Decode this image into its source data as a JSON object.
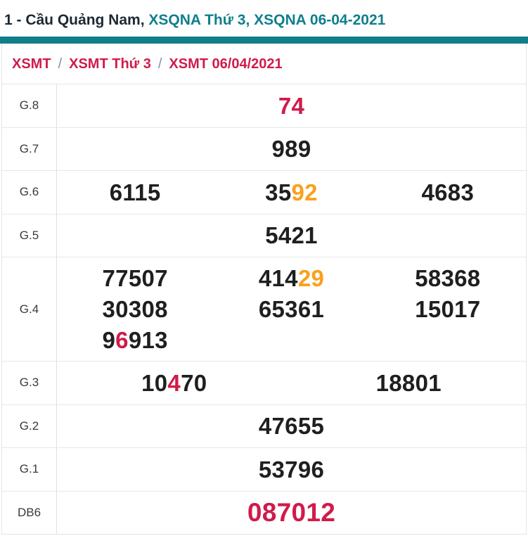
{
  "colors": {
    "teal": "#0e7f8b",
    "crimson": "#d01b4b",
    "orange": "#f9a11c",
    "dark": "#1f1f1f",
    "title_dark": "#1c2833",
    "slash": "#7e93ac",
    "label_gray": "#3a3a3a"
  },
  "title": {
    "segments": [
      {
        "t": "1 - Cầu Quảng Nam, ",
        "c": "title_dark"
      },
      {
        "t": "XSQNA Thứ 3, XSQNA 06-04-2021",
        "c": "teal"
      }
    ]
  },
  "breadcrumb": {
    "separator": "/",
    "items": [
      {
        "label": "XSMT"
      },
      {
        "label": "XSMT Thứ 3"
      },
      {
        "label": "XSMT 06/04/2021"
      }
    ]
  },
  "table": {
    "rows": [
      {
        "label": "G.8",
        "columns": 1,
        "values": [
          [
            {
              "t": "74",
              "c": "crimson"
            }
          ]
        ]
      },
      {
        "label": "G.7",
        "columns": 1,
        "values": [
          [
            {
              "t": "989",
              "c": "dark"
            }
          ]
        ]
      },
      {
        "label": "G.6",
        "columns": 3,
        "values": [
          [
            {
              "t": "6115",
              "c": "dark"
            }
          ],
          [
            {
              "t": "35",
              "c": "dark"
            },
            {
              "t": "92",
              "c": "orange"
            }
          ],
          [
            {
              "t": "4683",
              "c": "dark"
            }
          ]
        ]
      },
      {
        "label": "G.5",
        "columns": 1,
        "values": [
          [
            {
              "t": "5421",
              "c": "dark"
            }
          ]
        ]
      },
      {
        "label": "G.4",
        "columns": 3,
        "values": [
          [
            {
              "t": "77507",
              "c": "dark"
            }
          ],
          [
            {
              "t": "414",
              "c": "dark"
            },
            {
              "t": "29",
              "c": "orange"
            }
          ],
          [
            {
              "t": "58368",
              "c": "dark"
            }
          ],
          [
            {
              "t": "30308",
              "c": "dark"
            }
          ],
          [
            {
              "t": "65361",
              "c": "dark"
            }
          ],
          [
            {
              "t": "15017",
              "c": "dark"
            }
          ],
          [
            {
              "t": "9",
              "c": "dark"
            },
            {
              "t": "6",
              "c": "crimson"
            },
            {
              "t": "913",
              "c": "dark"
            }
          ]
        ]
      },
      {
        "label": "G.3",
        "columns": 2,
        "values": [
          [
            {
              "t": "10",
              "c": "dark"
            },
            {
              "t": "4",
              "c": "crimson"
            },
            {
              "t": "70",
              "c": "dark"
            }
          ],
          [
            {
              "t": "18801",
              "c": "dark"
            }
          ]
        ]
      },
      {
        "label": "G.2",
        "columns": 1,
        "values": [
          [
            {
              "t": "47655",
              "c": "dark"
            }
          ]
        ]
      },
      {
        "label": "G.1",
        "columns": 1,
        "values": [
          [
            {
              "t": "53796",
              "c": "dark"
            }
          ]
        ]
      },
      {
        "label": "DB6",
        "columns": 1,
        "size": "xl",
        "values": [
          [
            {
              "t": "087012",
              "c": "crimson"
            }
          ]
        ]
      }
    ]
  }
}
